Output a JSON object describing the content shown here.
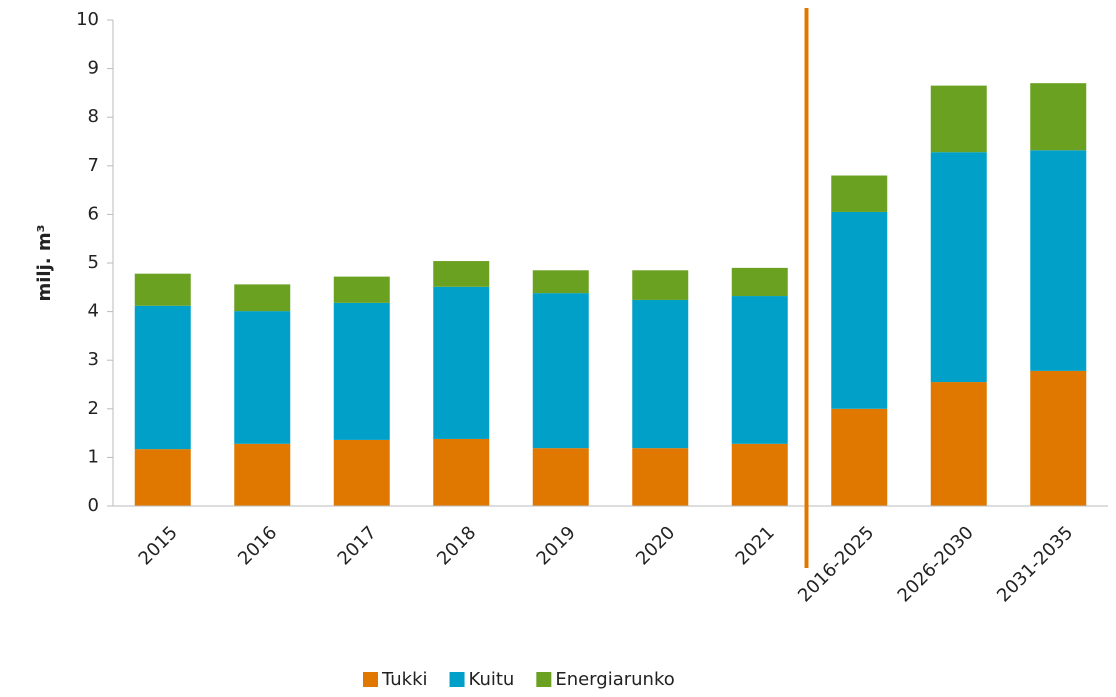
{
  "chart_data": {
    "type": "stacked_bar",
    "y_label": "milj. m³",
    "categories": [
      "2015",
      "2016",
      "2017",
      "2018",
      "2019",
      "2020",
      "2021",
      "2016-2025",
      "2026-2030",
      "2031-2035"
    ],
    "series": [
      {
        "name": "Tukki",
        "color": "#e07800",
        "values": [
          1.17,
          1.28,
          1.36,
          1.38,
          1.19,
          1.19,
          1.28,
          2.0,
          2.55,
          2.78
        ]
      },
      {
        "name": "Kuitu",
        "color": "#00a0c8",
        "values": [
          2.95,
          2.73,
          2.82,
          3.13,
          3.19,
          3.05,
          3.04,
          4.05,
          4.73,
          4.54
        ]
      },
      {
        "name": "Energiarunko",
        "color": "#6aa121",
        "values": [
          0.66,
          0.55,
          0.54,
          0.53,
          0.47,
          0.61,
          0.58,
          0.75,
          1.37,
          1.38
        ]
      }
    ],
    "ylim": [
      0,
      10
    ],
    "yticks": [
      0,
      1,
      2,
      3,
      4,
      5,
      6,
      7,
      8,
      9,
      10
    ],
    "grid": false
  }
}
